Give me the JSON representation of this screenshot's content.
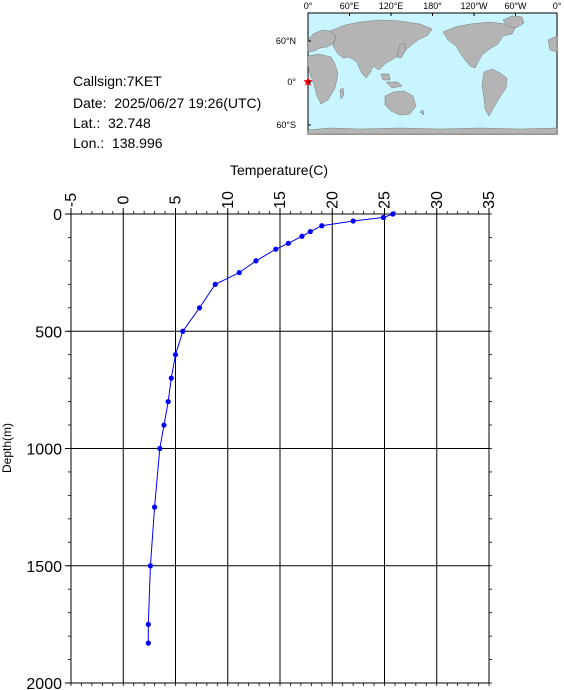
{
  "station": {
    "callsign": "Callsign:7KET",
    "date": "Date:  2025/06/27 19:26(UTC)",
    "lat": "Lat.:  32.748",
    "lon": "Lon.:  138.996"
  },
  "map": {
    "top_ticks": [
      "0°",
      "60°E",
      "120°E",
      "180°",
      "120°W",
      "60°W",
      "0°"
    ],
    "left_ticks": [
      "60°N",
      "0°",
      "60°S"
    ],
    "ocean_color": "#c8f5ff",
    "land_color": "#b4b4b4",
    "marker_color": "#ff0000"
  },
  "chart_data": {
    "type": "line",
    "xlabel": "Temperature(C)",
    "ylabel": "Depth(m)",
    "xlim": [
      -5,
      35
    ],
    "ylim": [
      0,
      2000
    ],
    "y_inverted": true,
    "x_ticks": [
      "-5",
      "0",
      "5",
      "10",
      "15",
      "20",
      "25",
      "30",
      "35"
    ],
    "y_ticks": [
      "0",
      "500",
      "1000",
      "1500",
      "2000"
    ],
    "grid": true,
    "series": [
      {
        "color": "#0000ff",
        "points": [
          {
            "t": 25.8,
            "d": 0
          },
          {
            "t": 24.9,
            "d": 15
          },
          {
            "t": 22.0,
            "d": 30
          },
          {
            "t": 19.0,
            "d": 50
          },
          {
            "t": 17.9,
            "d": 75
          },
          {
            "t": 17.1,
            "d": 95
          },
          {
            "t": 15.8,
            "d": 125
          },
          {
            "t": 14.6,
            "d": 150
          },
          {
            "t": 12.7,
            "d": 200
          },
          {
            "t": 11.1,
            "d": 250
          },
          {
            "t": 8.8,
            "d": 300
          },
          {
            "t": 7.3,
            "d": 400
          },
          {
            "t": 5.7,
            "d": 500
          },
          {
            "t": 5.0,
            "d": 600
          },
          {
            "t": 4.6,
            "d": 700
          },
          {
            "t": 4.3,
            "d": 800
          },
          {
            "t": 3.9,
            "d": 900
          },
          {
            "t": 3.5,
            "d": 1000
          },
          {
            "t": 3.0,
            "d": 1250
          },
          {
            "t": 2.6,
            "d": 1500
          },
          {
            "t": 2.4,
            "d": 1750
          },
          {
            "t": 2.4,
            "d": 1830
          }
        ]
      }
    ]
  }
}
